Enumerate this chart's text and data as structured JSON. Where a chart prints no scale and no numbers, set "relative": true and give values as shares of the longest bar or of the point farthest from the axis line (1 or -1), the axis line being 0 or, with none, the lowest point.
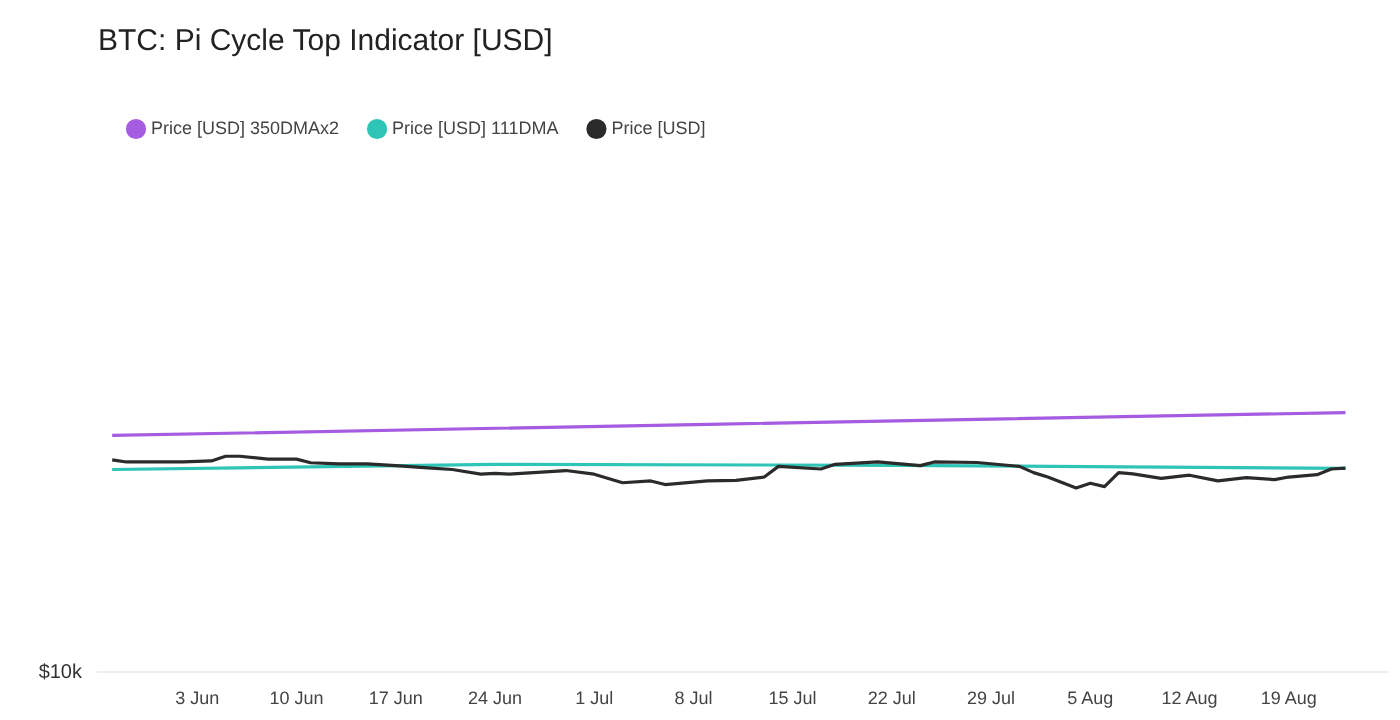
{
  "chart_data": {
    "type": "line",
    "title": "BTC: Pi Cycle Top Indicator [USD]",
    "relative": true,
    "legend": "top left",
    "grid": false,
    "marker": "none",
    "line_style": "solid",
    "annotations": [
      "$10k"
    ],
    "xlim": [
      "--05-27",
      "--08-26"
    ],
    "xticks": [
      {
        "value": "--06-03",
        "label": "3 Jun"
      },
      {
        "value": "--06-10",
        "label": "10 Jun"
      },
      {
        "value": "--06-17",
        "label": "17 Jun"
      },
      {
        "value": "--06-24",
        "label": "24 Jun"
      },
      {
        "value": "--07-01",
        "label": "1 Jul"
      },
      {
        "value": "--07-08",
        "label": "8 Jul"
      },
      {
        "value": "--07-15",
        "label": "15 Jul"
      },
      {
        "value": "--07-22",
        "label": "22 Jul"
      },
      {
        "value": "--07-29",
        "label": "29 Jul"
      },
      {
        "value": "--08-05",
        "label": "5 Aug"
      },
      {
        "value": "--08-12",
        "label": "12 Aug"
      },
      {
        "value": "--08-19",
        "label": "19 Aug"
      }
    ],
    "series": [
      {
        "name": "Price [USD] 350DMAx2",
        "color": "#a55ce0",
        "x": [
          "--05-28",
          "--07-10",
          "--08-23"
        ],
        "values": [
          0.912,
          0.956,
          1.0
        ]
      },
      {
        "name": "Price [USD] 111DMA",
        "color": "#2ec4b6",
        "x": [
          "--05-28",
          "--06-24",
          "--07-22",
          "--08-23"
        ],
        "values": [
          0.781,
          0.801,
          0.797,
          0.785
        ]
      },
      {
        "name": "Price [USD]",
        "color": "#2b2b2b",
        "x": [
          "--05-28",
          "--05-29",
          "--05-31",
          "--06-02",
          "--06-04",
          "--06-05",
          "--06-06",
          "--06-08",
          "--06-10",
          "--06-11",
          "--06-13",
          "--06-15",
          "--06-17",
          "--06-19",
          "--06-21",
          "--06-23",
          "--06-24",
          "--06-25",
          "--06-27",
          "--06-29",
          "--07-01",
          "--07-03",
          "--07-05",
          "--07-06",
          "--07-09",
          "--07-11",
          "--07-13",
          "--07-14",
          "--07-17",
          "--07-18",
          "--07-21",
          "--07-24",
          "--07-25",
          "--07-28",
          "--07-31",
          "--08-01",
          "--08-02",
          "--08-04",
          "--08-05",
          "--08-06",
          "--08-07",
          "--08-08",
          "--08-10",
          "--08-12",
          "--08-14",
          "--08-16",
          "--08-18",
          "--08-19",
          "--08-21",
          "--08-22",
          "--08-23"
        ],
        "values": [
          0.818,
          0.81,
          0.81,
          0.81,
          0.814,
          0.832,
          0.832,
          0.821,
          0.821,
          0.807,
          0.803,
          0.803,
          0.796,
          0.788,
          0.781,
          0.763,
          0.766,
          0.763,
          0.77,
          0.777,
          0.763,
          0.73,
          0.737,
          0.723,
          0.737,
          0.739,
          0.752,
          0.793,
          0.783,
          0.801,
          0.81,
          0.796,
          0.81,
          0.808,
          0.793,
          0.769,
          0.752,
          0.71,
          0.728,
          0.715,
          0.769,
          0.764,
          0.747,
          0.759,
          0.737,
          0.75,
          0.742,
          0.752,
          0.761,
          0.783,
          0.786
        ]
      }
    ]
  }
}
